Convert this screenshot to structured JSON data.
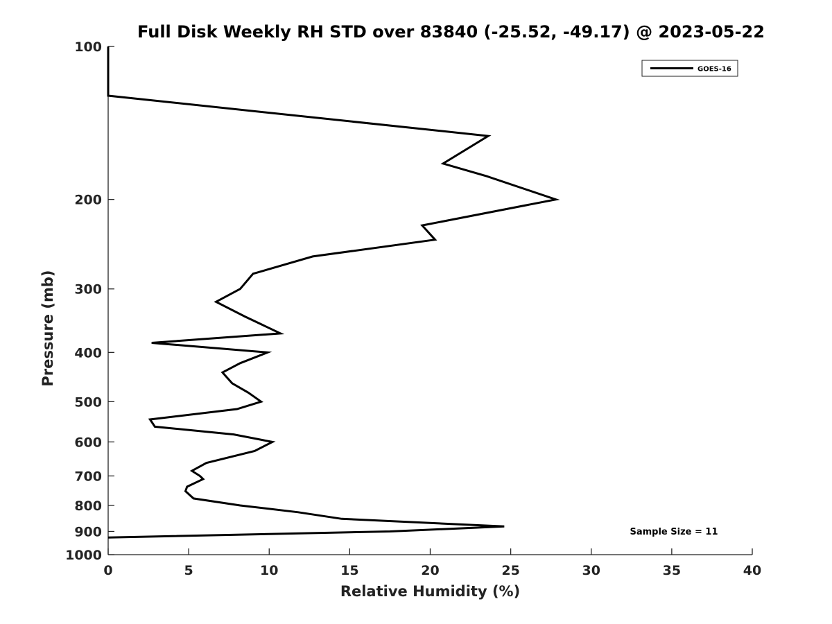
{
  "chart_data": {
    "type": "line",
    "title": "Full Disk Weekly RH STD over 83840 (-25.52, -49.17) @ 2023-05-22",
    "xlabel": "Relative Humidity (%)",
    "ylabel": "Pressure (mb)",
    "xlim": [
      0,
      40
    ],
    "ylim": [
      100,
      1000
    ],
    "y_scale": "log",
    "y_inverted": true,
    "grid": false,
    "legend_position": "top-right",
    "x_ticks": [
      "0",
      "5",
      "10",
      "15",
      "20",
      "25",
      "30",
      "35",
      "40"
    ],
    "y_ticks": [
      "100",
      "200",
      "300",
      "400",
      "500",
      "600",
      "700",
      "800",
      "900",
      "1000"
    ],
    "annotation": "Sample Size = 11",
    "series": [
      {
        "name": "GOES-16",
        "color": "#000000",
        "points": [
          [
            0,
            100
          ],
          [
            0,
            125
          ],
          [
            23.6,
            150
          ],
          [
            20.8,
            170
          ],
          [
            23.5,
            180
          ],
          [
            27.8,
            200
          ],
          [
            19.5,
            225
          ],
          [
            20.3,
            240
          ],
          [
            12.7,
            259
          ],
          [
            9.0,
            280
          ],
          [
            8.2,
            300
          ],
          [
            6.7,
            318
          ],
          [
            8.5,
            340
          ],
          [
            10.7,
            367
          ],
          [
            2.7,
            383
          ],
          [
            9.9,
            400
          ],
          [
            8.2,
            420
          ],
          [
            7.1,
            438
          ],
          [
            7.7,
            460
          ],
          [
            8.7,
            480
          ],
          [
            9.5,
            500
          ],
          [
            8.0,
            517
          ],
          [
            2.6,
            542
          ],
          [
            2.9,
            560
          ],
          [
            7.8,
            580
          ],
          [
            10.2,
            600
          ],
          [
            9.1,
            625
          ],
          [
            6.1,
            660
          ],
          [
            5.2,
            684
          ],
          [
            5.7,
            700
          ],
          [
            5.9,
            710
          ],
          [
            4.9,
            735
          ],
          [
            4.8,
            750
          ],
          [
            5.3,
            775
          ],
          [
            8.2,
            800
          ],
          [
            11.8,
            825
          ],
          [
            14.5,
            850
          ],
          [
            24.6,
            880
          ],
          [
            17.5,
            900
          ],
          [
            0,
            925
          ]
        ]
      }
    ]
  }
}
